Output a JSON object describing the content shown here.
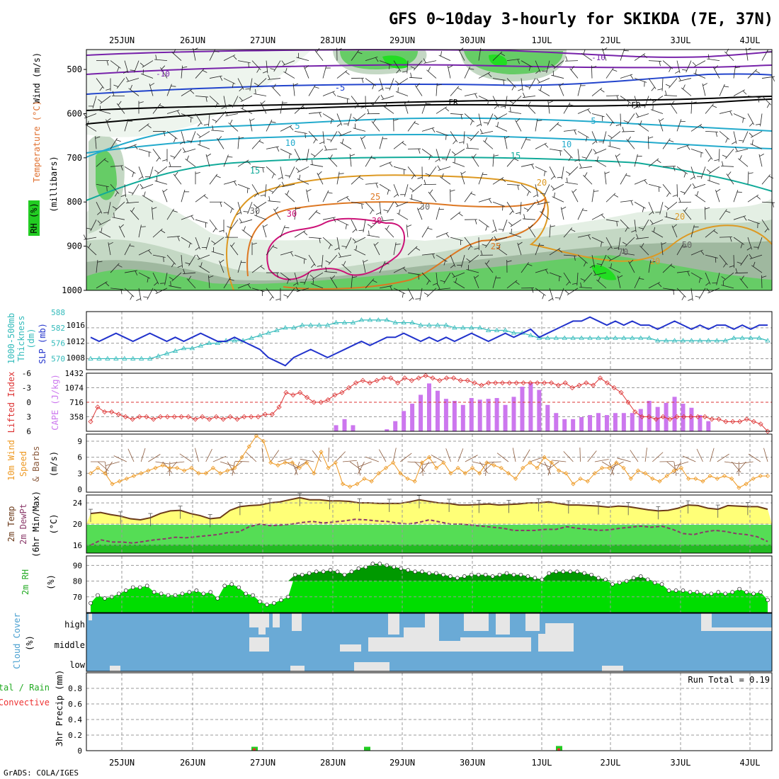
{
  "title": "GFS 0~10day 3-hourly for SKIKDA (7E, 37N)",
  "footer": "GrADS: COLA/IGES",
  "dates": [
    "25JUN",
    "26JUN",
    "27JUN",
    "28JUN",
    "29JUN",
    "30JUN",
    "1JUL",
    "2JUL",
    "3JUL",
    "4JUL"
  ],
  "colors": {
    "rh_light": "#e4efe4",
    "rh_mid": "#c4d8c4",
    "rh_dark": "#9fb89f",
    "rh_green": "#66cc66",
    "rh_bright": "#22dd22",
    "slp": "#2233cc",
    "thickness": "#33bbbb",
    "lifted": "#dd3333",
    "cape": "#cc77ee",
    "wind10": "#ee9922",
    "barb10": "#8b5a3c",
    "temp_fill": "#ffff77",
    "dew_line": "#8b3a6a",
    "rh2m_dark": "#009900",
    "rh2m_light": "#00dd00",
    "cloud": "#6aaad6",
    "cloud_gap": "#e6e6e6",
    "precip_total": "#22cc22",
    "precip_conv": "#ee3333"
  },
  "panels": {
    "upper": {
      "ylabel_a": "Wind (m/s)",
      "ylabel_b": "Temperature (°C)",
      "ylabel_c": "RH (%)",
      "ylabel_d": "(millibars)",
      "y_ticks": [
        "500",
        "600",
        "700",
        "800",
        "900",
        "1000"
      ],
      "contour_labels": [
        "-10",
        "-10",
        "-5",
        "FR",
        "FR",
        "5",
        "5",
        "10",
        "10",
        "15",
        "15",
        "20",
        "20",
        "20",
        "25",
        "25",
        "30",
        "30",
        "30",
        "30",
        "50",
        "70"
      ]
    },
    "slp": {
      "label_a": "Thickness",
      "label_b": "1000-500mb",
      "label_c": "(dm)",
      "label_d": "SLP (mb)",
      "thick_ticks": [
        "588",
        "582",
        "576",
        "570"
      ],
      "slp_ticks": [
        "1016",
        "1012",
        "1008"
      ]
    },
    "cape": {
      "label_a": "Lifted Index",
      "label_b": "CAPE (J/kg)",
      "li_ticks": [
        "-6",
        "-3",
        "0",
        "3",
        "6"
      ],
      "cape_ticks": [
        "1432",
        "1074",
        "716",
        "358"
      ]
    },
    "wind10": {
      "label_a": "10m Wind",
      "label_b": "Speed",
      "label_c": "& Barbs",
      "unit": "(m/s)",
      "ticks": [
        "9",
        "6",
        "3",
        "0"
      ]
    },
    "temp2m": {
      "label_a": "2m Temp",
      "label_b": "2m DewPt",
      "label_c": "(6hr Min/Max)",
      "unit": "(°C)",
      "ticks": [
        "24",
        "20",
        "16"
      ]
    },
    "rh2m": {
      "label": "2m RH",
      "unit": "(%)",
      "ticks": [
        "90",
        "80",
        "70"
      ]
    },
    "cloud": {
      "label_a": "Cloud Cover",
      "unit": "(%)",
      "levels": [
        "high",
        "middle",
        "low"
      ]
    },
    "precip": {
      "label_a": "Total / Rain",
      "label_b": "Convective",
      "label_c": "3hr Precip (mm)",
      "ticks": [
        "0.8",
        "0.6",
        "0.4",
        "0.2",
        "0"
      ],
      "run_total": "Run Total = 0.19"
    }
  },
  "chart_data": [
    {
      "type": "line",
      "title": "Thickness / SLP",
      "series": [
        {
          "name": "SLP (mb)",
          "values": [
            1013,
            1012,
            1013,
            1014,
            1013,
            1012,
            1013,
            1014,
            1013,
            1012,
            1013,
            1012,
            1013,
            1014,
            1013,
            1012,
            1012,
            1013,
            1012,
            1011,
            1010,
            1008,
            1007,
            1006,
            1008,
            1009,
            1010,
            1009,
            1008,
            1009,
            1010,
            1011,
            1012,
            1011,
            1012,
            1013,
            1013,
            1014,
            1013,
            1012,
            1013,
            1012,
            1013,
            1012,
            1013,
            1014,
            1013,
            1012,
            1013,
            1014,
            1013,
            1014,
            1015,
            1013,
            1014,
            1015,
            1016,
            1017,
            1017,
            1018,
            1017,
            1016,
            1017,
            1016,
            1017,
            1016,
            1016,
            1015,
            1016,
            1017,
            1016,
            1015,
            1016,
            1015,
            1016,
            1016,
            1015,
            1016,
            1015,
            1016,
            1016
          ]
        },
        {
          "name": "1000-500mb Thickness (dm)",
          "values": [
            570,
            570,
            570,
            570,
            570,
            570,
            570,
            570,
            571,
            572,
            573,
            574,
            574,
            575,
            576,
            576,
            577,
            577,
            577,
            578,
            579,
            580,
            581,
            582,
            582,
            583,
            583,
            583,
            583,
            584,
            584,
            584,
            585,
            585,
            585,
            585,
            584,
            584,
            584,
            583,
            583,
            583,
            583,
            582,
            582,
            582,
            582,
            581,
            581,
            581,
            580,
            580,
            579,
            578,
            578,
            578,
            578,
            578,
            578,
            578,
            578,
            578,
            578,
            578,
            578,
            578,
            578,
            577,
            577,
            577,
            577,
            577,
            577,
            577,
            577,
            577,
            578,
            578,
            578,
            578,
            577
          ]
        }
      ]
    },
    {
      "type": "bar",
      "title": "CAPE / Lifted Index",
      "series": [
        {
          "name": "CAPE (J/kg)",
          "values": [
            0,
            0,
            0,
            0,
            0,
            0,
            0,
            0,
            0,
            0,
            0,
            0,
            0,
            0,
            0,
            0,
            0,
            0,
            0,
            0,
            0,
            0,
            0,
            0,
            0,
            0,
            0,
            0,
            0,
            150,
            300,
            150,
            0,
            0,
            0,
            50,
            250,
            500,
            680,
            900,
            1180,
            1000,
            800,
            750,
            650,
            820,
            780,
            800,
            820,
            650,
            850,
            1100,
            1200,
            1020,
            650,
            450,
            300,
            300,
            350,
            400,
            450,
            400,
            450,
            450,
            450,
            550,
            750,
            600,
            700,
            850,
            680,
            580,
            400,
            250,
            0,
            0,
            0,
            0,
            0,
            0,
            0
          ]
        },
        {
          "name": "Lifted Index",
          "values": [
            4,
            1,
            2,
            2,
            2.5,
            3,
            3.5,
            3,
            3,
            3.5,
            3,
            3,
            3,
            3,
            3,
            3.5,
            3,
            3.5,
            3,
            3.5,
            3,
            3.5,
            3,
            3,
            3,
            2.5,
            2.5,
            1,
            -2,
            -1.5,
            -2,
            -1,
            0,
            0,
            -0.5,
            -1.5,
            -2,
            -3,
            -4,
            -4.5,
            -4,
            -4.5,
            -5,
            -5,
            -4,
            -5,
            -4.5,
            -5,
            -5.5,
            -5,
            -4.5,
            -5,
            -5,
            -4.5,
            -4.5,
            -4,
            -3.5,
            -4,
            -4,
            -4,
            -4,
            -4,
            -4,
            -4,
            -4,
            -4,
            -4,
            -3.5,
            -4,
            -3,
            -3.5,
            -4,
            -3.5,
            -5,
            -4,
            -3,
            -2,
            0,
            2,
            3,
            3,
            3.5,
            3,
            3.5,
            3,
            3,
            3,
            3,
            3,
            3.5,
            3.5,
            4,
            4,
            4,
            3.5,
            4,
            4.5,
            6
          ]
        }
      ]
    },
    {
      "type": "line",
      "title": "10m Wind Speed",
      "series": [
        {
          "name": "10m Wind Speed (m/s)",
          "values": [
            3,
            4,
            3,
            1,
            1.5,
            2,
            2.5,
            3,
            3.5,
            4,
            4.5,
            4,
            4,
            3.5,
            4,
            3,
            3,
            4,
            3,
            3.5,
            4,
            6,
            8,
            10,
            9,
            5,
            4.5,
            5,
            5,
            4,
            5,
            3,
            7,
            4,
            5,
            1,
            0.5,
            1,
            2,
            1.5,
            3,
            4,
            5,
            3,
            2,
            1.5,
            5,
            6,
            4,
            5,
            3,
            4,
            3,
            4,
            3,
            5,
            4.5,
            4,
            3,
            2,
            4,
            5,
            4,
            6,
            5,
            3.5,
            3,
            1,
            2,
            1.5,
            3,
            4,
            4,
            5,
            4,
            2,
            3.5,
            3,
            2,
            1.5,
            2.5,
            3.5,
            4,
            2,
            2,
            1.5,
            2.5,
            2,
            2.5,
            2,
            0.3,
            1,
            2,
            2.5,
            2.5
          ]
        }
      ]
    },
    {
      "type": "area",
      "title": "2m Temp / DewPt",
      "series": [
        {
          "name": "2m Temp (°C)",
          "values": [
            22,
            22.2,
            21.8,
            21.5,
            21,
            20.8,
            21.2,
            22,
            22.5,
            22.6,
            22,
            21.6,
            21,
            21.2,
            22.6,
            23.3,
            23.5,
            23.6,
            24,
            24.2,
            24.6,
            25,
            24.6,
            24.6,
            24.4,
            24.4,
            24.3,
            24,
            24,
            23.9,
            23.9,
            23.9,
            24.2,
            24.6,
            24.3,
            24,
            23.9,
            23.6,
            23.6,
            23.7,
            23.8,
            23.6,
            23.7,
            23.8,
            24,
            24,
            24.2,
            23.9,
            23.6,
            23.6,
            23.5,
            23.4,
            23.2,
            23.4,
            23.3,
            23,
            22.7,
            22.5,
            22.6,
            23,
            23.6,
            23.5,
            23,
            22.8,
            23.5,
            23.4,
            23.3,
            23.3,
            22.8
          ]
        },
        {
          "name": "2m DewPt (°C)",
          "values": [
            16,
            17,
            16.6,
            16.6,
            16.4,
            16.7,
            17,
            17.2,
            17.5,
            17.4,
            17.6,
            17.8,
            18,
            18.4,
            18.5,
            19.5,
            20,
            19.7,
            19.8,
            20,
            20.3,
            20.5,
            20.2,
            20.4,
            20.6,
            20.9,
            20.8,
            20.6,
            20.5,
            20.2,
            20,
            20.3,
            20.8,
            20.4,
            20,
            20,
            19.8,
            19.6,
            19.4,
            19.2,
            18.8,
            18.8,
            18.8,
            19,
            19,
            19.5,
            19.2,
            19,
            18.8,
            18.9,
            19.2,
            19.4,
            19.6,
            19.4,
            19.6,
            19,
            18.2,
            18,
            18.5,
            18.8,
            18.6,
            18.2,
            18,
            17.6,
            16.7
          ]
        }
      ]
    },
    {
      "type": "area",
      "title": "2m RH",
      "series": [
        {
          "name": "2m RH (%)",
          "values": [
            66,
            71,
            69,
            70,
            72,
            74,
            76,
            76,
            77,
            73,
            72,
            71,
            71,
            72,
            73,
            74,
            72,
            73,
            69,
            77,
            78,
            76,
            72,
            71,
            67,
            65,
            66,
            68,
            70,
            84,
            84,
            85,
            86,
            86,
            87,
            86,
            84,
            86,
            88,
            89,
            91,
            91,
            90,
            89,
            88,
            87,
            86,
            86,
            85,
            85,
            84,
            83,
            82,
            83,
            84,
            84,
            84,
            83,
            84,
            85,
            84,
            84,
            83,
            82,
            81,
            85,
            86,
            86,
            86,
            86,
            85,
            84,
            82,
            81,
            78,
            79,
            80,
            82,
            83,
            81,
            79,
            78,
            74,
            74,
            74,
            73,
            73,
            72,
            72,
            73,
            72,
            73,
            75,
            73,
            72,
            73,
            68
          ]
        }
      ]
    },
    {
      "type": "bar",
      "title": "3hr Precip",
      "ylabel": "3hr Precip (mm)",
      "ylim": [
        0,
        1
      ],
      "series": [
        {
          "name": "Total / Rain",
          "values": [
            0.05,
            0.05,
            0.06
          ]
        },
        {
          "name": "Convective",
          "values": [
            0.03,
            0.0,
            0.03
          ]
        }
      ],
      "categories": [
        "27JUN",
        "28JUN",
        "1JUL"
      ]
    }
  ]
}
